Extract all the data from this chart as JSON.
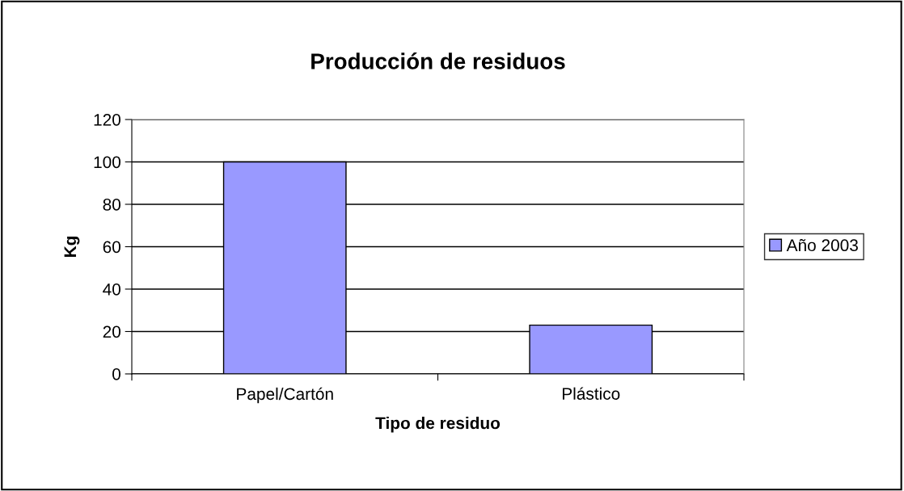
{
  "chart_data": {
    "type": "bar",
    "title": "Producción de residuos",
    "xlabel": "Tipo de residuo",
    "ylabel": "Kg",
    "categories": [
      "Papel/Cartón",
      "Plástico"
    ],
    "series": [
      {
        "name": "Año 2003",
        "color": "#9999ff",
        "values": [
          100,
          23
        ]
      }
    ],
    "ylim": [
      0,
      120
    ],
    "yticks": [
      0,
      20,
      40,
      60,
      80,
      100,
      120
    ],
    "grid": "y",
    "legend": "right"
  }
}
